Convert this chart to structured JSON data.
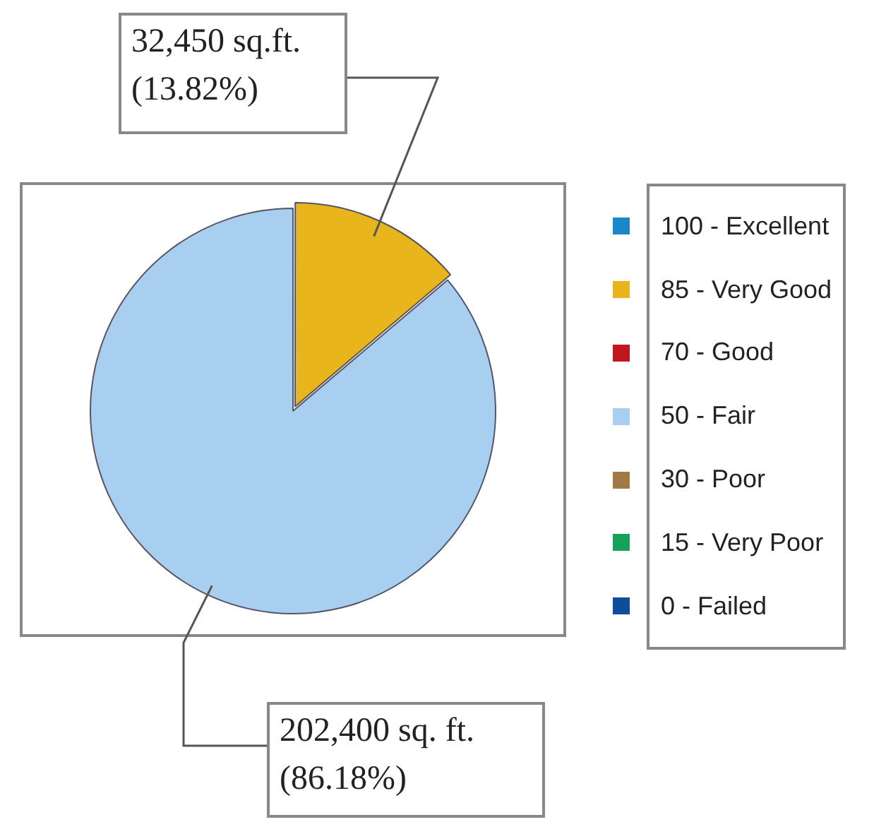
{
  "chart_data": {
    "type": "pie",
    "categories": [
      "100 - Excellent",
      "85 - Very Good",
      "70 - Good",
      "50 - Fair",
      "30 - Poor",
      "15 - Very Poor",
      "0 - Failed"
    ],
    "values": [
      0,
      32450,
      0,
      202400,
      0,
      0,
      0
    ],
    "colors": [
      "#1b87c9",
      "#e8b51c",
      "#c0161f",
      "#a9cff0",
      "#a07a45",
      "#17a05a",
      "#0d4d9a"
    ],
    "value_labels": [
      null,
      "32,450 sq.ft.\n(13.82%)",
      null,
      "202,400 sq. ft.\n(86.18%)",
      null,
      null,
      null
    ],
    "legend": "right"
  }
}
